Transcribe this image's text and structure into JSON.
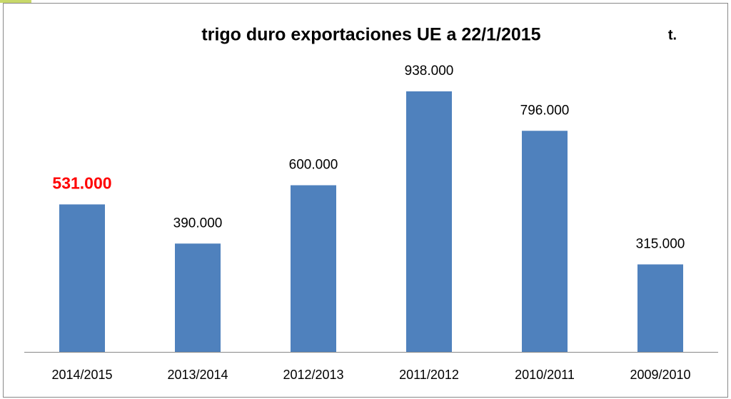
{
  "chart_data": {
    "type": "bar",
    "title": "trigo duro exportaciones UE a  22/1/2015",
    "unit": "t.",
    "categories": [
      "2014/2015",
      "2013/2014",
      "2012/2013",
      "2011/2012",
      "2010/2011",
      "2009/2010"
    ],
    "values": [
      531000,
      390000,
      600000,
      938000,
      796000,
      315000
    ],
    "value_labels": [
      "531.000",
      "390.000",
      "600.000",
      "938.000",
      "796.000",
      "315.000"
    ],
    "value_label_colors": [
      "#ff0000",
      "#000000",
      "#000000",
      "#000000",
      "#000000",
      "#000000"
    ],
    "color": "#4f81bd"
  }
}
